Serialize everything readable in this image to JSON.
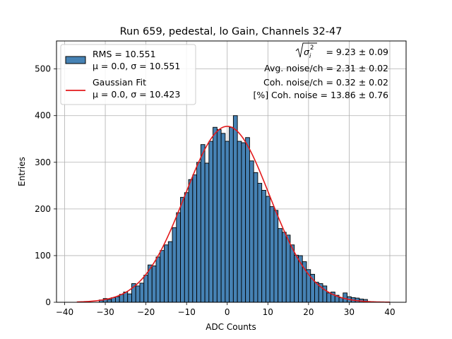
{
  "chart_data": {
    "type": "bar",
    "title": "Run 659, pedestal, lo Gain, Channels 32-47",
    "xlabel": "ADC Counts",
    "ylabel": "Entries",
    "xlim": [
      -42,
      44
    ],
    "ylim": [
      0,
      560
    ],
    "xticks": [
      -40,
      -30,
      -20,
      -10,
      0,
      10,
      20,
      30,
      40
    ],
    "yticks": [
      0,
      100,
      200,
      300,
      400,
      500
    ],
    "grid": true,
    "bin_width": 1,
    "bins": [
      {
        "x": -37,
        "count": 0
      },
      {
        "x": -36,
        "count": 0
      },
      {
        "x": -35,
        "count": 0
      },
      {
        "x": -34,
        "count": 0
      },
      {
        "x": -33,
        "count": 0
      },
      {
        "x": -32,
        "count": 0
      },
      {
        "x": -31,
        "count": 5
      },
      {
        "x": -30,
        "count": 8
      },
      {
        "x": -29,
        "count": 6
      },
      {
        "x": -28,
        "count": 10
      },
      {
        "x": -27,
        "count": 12
      },
      {
        "x": -26,
        "count": 17
      },
      {
        "x": -25,
        "count": 22
      },
      {
        "x": -24,
        "count": 18
      },
      {
        "x": -23,
        "count": 40
      },
      {
        "x": -22,
        "count": 35
      },
      {
        "x": -21,
        "count": 41
      },
      {
        "x": -20,
        "count": 58
      },
      {
        "x": -19,
        "count": 80
      },
      {
        "x": -18,
        "count": 78
      },
      {
        "x": -17,
        "count": 97
      },
      {
        "x": -16,
        "count": 111
      },
      {
        "x": -15,
        "count": 123
      },
      {
        "x": -14,
        "count": 130
      },
      {
        "x": -13,
        "count": 160
      },
      {
        "x": -12,
        "count": 192
      },
      {
        "x": -11,
        "count": 225
      },
      {
        "x": -10,
        "count": 235
      },
      {
        "x": -9,
        "count": 263
      },
      {
        "x": -8,
        "count": 273
      },
      {
        "x": -7,
        "count": 300
      },
      {
        "x": -6,
        "count": 338
      },
      {
        "x": -5,
        "count": 298
      },
      {
        "x": -4,
        "count": 345
      },
      {
        "x": -3,
        "count": 375
      },
      {
        "x": -2,
        "count": 370
      },
      {
        "x": -1,
        "count": 362
      },
      {
        "x": 0,
        "count": 345
      },
      {
        "x": 1,
        "count": 375
      },
      {
        "x": 2,
        "count": 400
      },
      {
        "x": 3,
        "count": 345
      },
      {
        "x": 4,
        "count": 342
      },
      {
        "x": 5,
        "count": 353
      },
      {
        "x": 6,
        "count": 303
      },
      {
        "x": 7,
        "count": 278
      },
      {
        "x": 8,
        "count": 255
      },
      {
        "x": 9,
        "count": 240
      },
      {
        "x": 10,
        "count": 227
      },
      {
        "x": 11,
        "count": 205
      },
      {
        "x": 12,
        "count": 197
      },
      {
        "x": 13,
        "count": 158
      },
      {
        "x": 14,
        "count": 150
      },
      {
        "x": 15,
        "count": 144
      },
      {
        "x": 16,
        "count": 123
      },
      {
        "x": 17,
        "count": 101
      },
      {
        "x": 18,
        "count": 100
      },
      {
        "x": 19,
        "count": 87
      },
      {
        "x": 20,
        "count": 70
      },
      {
        "x": 21,
        "count": 60
      },
      {
        "x": 22,
        "count": 43
      },
      {
        "x": 23,
        "count": 40
      },
      {
        "x": 24,
        "count": 35
      },
      {
        "x": 25,
        "count": 20
      },
      {
        "x": 26,
        "count": 22
      },
      {
        "x": 27,
        "count": 15
      },
      {
        "x": 28,
        "count": 10
      },
      {
        "x": 29,
        "count": 20
      },
      {
        "x": 30,
        "count": 12
      },
      {
        "x": 31,
        "count": 10
      },
      {
        "x": 32,
        "count": 9
      },
      {
        "x": 33,
        "count": 7
      },
      {
        "x": 34,
        "count": 6
      },
      {
        "x": 35,
        "count": 0
      },
      {
        "x": 36,
        "count": 0
      },
      {
        "x": 37,
        "count": 0
      },
      {
        "x": 38,
        "count": 0
      },
      {
        "x": 39,
        "count": 0
      }
    ],
    "fit": {
      "type": "gaussian",
      "mu": 0.0,
      "sigma": 10.423,
      "amplitude": 377,
      "x_range": [
        -37,
        40
      ]
    },
    "legend": {
      "placement": "top-left",
      "histogram_label_line1": "RMS = 10.551",
      "histogram_label_line2": "μ = 0.0, σ = 10.551",
      "fit_label_line1": "Gaussian Fit",
      "fit_label_line2": "μ = 0.0, σ = 10.423"
    },
    "annotations": {
      "placement": "top-right",
      "sqrt_sigma_prefix": "σ",
      "sqrt_sigma_subscript": "i",
      "sqrt_sigma_superscript": "2",
      "sqrt_sigma_value": " = 9.23 ± 0.09",
      "avg_noise": "Avg. noise/ch = 2.31 ± 0.02",
      "coh_noise": "Coh. noise/ch = 0.32 ± 0.02",
      "coh_noise_percent": "[%] Coh. noise = 13.86 ± 0.76"
    },
    "colors": {
      "bar_fill": "#4682b4",
      "bar_edge": "#000000",
      "fit_line": "#e31a1c",
      "grid": "#b0b0b0"
    }
  }
}
